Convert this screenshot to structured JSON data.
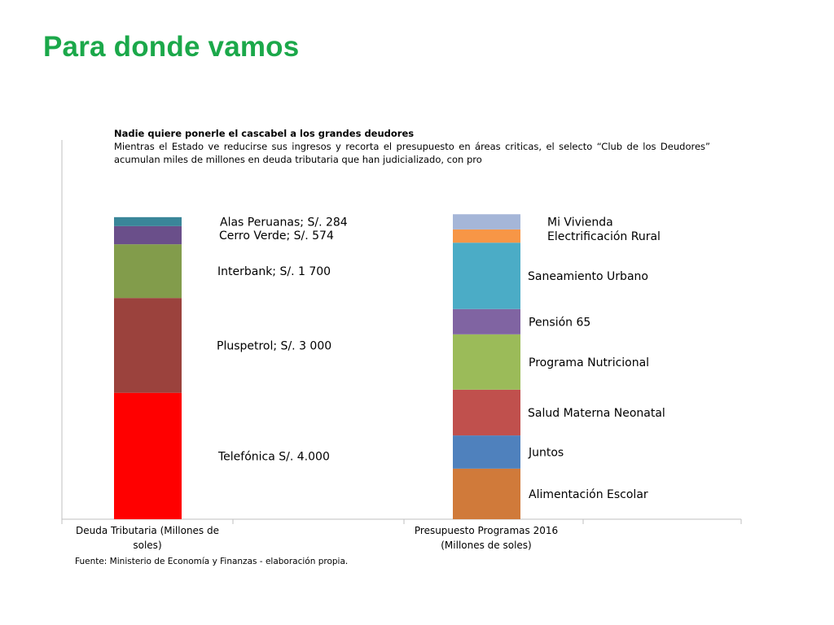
{
  "slide": {
    "title": "Para donde vamos",
    "subtitle_heading": "Nadie quiere ponerle el cascabel a los grandes deudores",
    "subtitle_body": "Mientras el Estado ve reducirse sus ingresos y recorta el presupuesto en áreas criticas, el selecto “Club de los Deudores” acumulan miles de millones en deuda tributaria que han judicializado, con pro",
    "source": "Fuente: Ministerio de Economía y Finanzas - elaboración propia."
  },
  "chart_data": {
    "type": "bar",
    "stacked": true,
    "title": "",
    "xlabel": "",
    "ylabel": "",
    "categories": [
      "Deuda Tributaria (Millones de soles)",
      "Presupuesto  Programas 2016 (Millones de soles)"
    ],
    "category_lines": [
      [
        "Deuda Tributaria (Millones de",
        "soles)"
      ],
      [
        "Presupuesto  Programas 2016",
        "(Millones de soles)"
      ]
    ],
    "bars": [
      {
        "category_index": 0,
        "segments": [
          {
            "name": "Telefónica",
            "label": "Telefónica S/. 4.000",
            "value": 4000,
            "color": "#FF0000"
          },
          {
            "name": "Pluspetrol",
            "label": "Pluspetrol; S/. 3 000",
            "value": 3000,
            "color": "#9B423D"
          },
          {
            "name": "Interbank",
            "label": "Interbank; S/. 1 700",
            "value": 1700,
            "color": "#829C4B"
          },
          {
            "name": "Cerro Verde",
            "label": "Cerro Verde; S/. 574",
            "value": 574,
            "color": "#6A4F8A"
          },
          {
            "name": "Alas Peruanas",
            "label": "Alas Peruanas; S/. 284",
            "value": 284,
            "color": "#3A8699"
          }
        ]
      },
      {
        "category_index": 1,
        "segments": [
          {
            "name": "Alimentación Escolar",
            "label": "Alimentación Escolar",
            "value": 1600,
            "color": "#D07A3A"
          },
          {
            "name": "Juntos",
            "label": "Juntos",
            "value": 1050,
            "color": "#4F81BD"
          },
          {
            "name": "Salud Materna Neonatal",
            "label": "Salud Materna Neonatal",
            "value": 1450,
            "color": "#C0504D"
          },
          {
            "name": "Programa Nutricional",
            "label": "Programa Nutricional",
            "value": 1750,
            "color": "#9BBB59"
          },
          {
            "name": "Pensión 65",
            "label": "Pensión 65",
            "value": 800,
            "color": "#8064A2"
          },
          {
            "name": "Saneamiento Urbano",
            "label": "Saneamiento Urbano",
            "value": 2100,
            "color": "#4BACC6"
          },
          {
            "name": "Electrificación Rural",
            "label": "Electrificación Rural",
            "value": 420,
            "color": "#F79646"
          },
          {
            "name": "Mi Vivienda",
            "label": "Mi Vivienda",
            "value": 480,
            "color": "#A5B6D8"
          }
        ]
      }
    ],
    "ylim": [
      0,
      12000
    ],
    "grid": false,
    "legend": "none",
    "axis_color": "#BFBFBF"
  }
}
